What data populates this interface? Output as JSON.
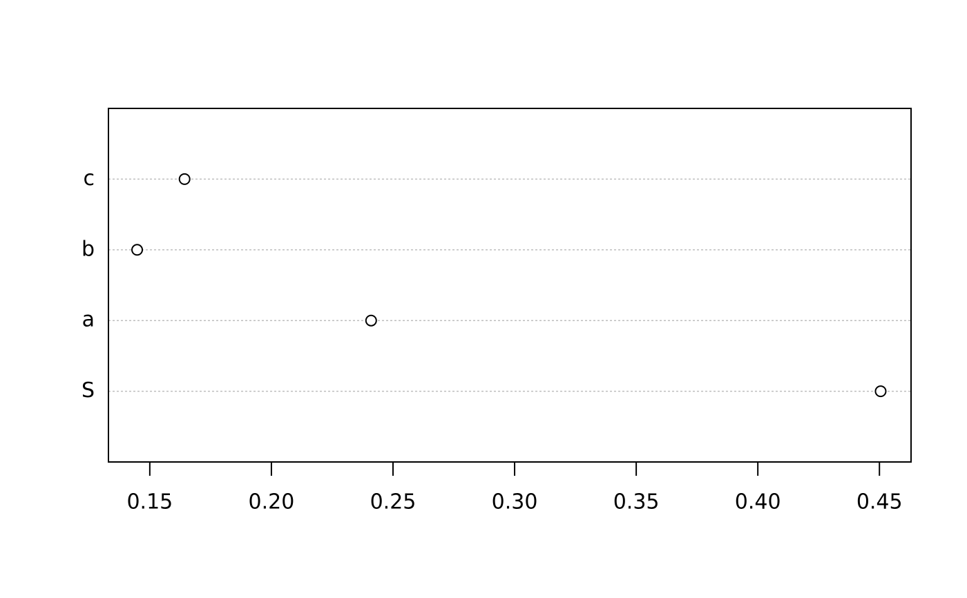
{
  "chart_data": {
    "type": "scatter",
    "subtype": "dotchart",
    "title": "",
    "xlabel": "",
    "ylabel": "",
    "categories": [
      "S",
      "a",
      "b",
      "c"
    ],
    "values": [
      0.4505,
      0.241,
      0.1448,
      0.1643
    ],
    "xlim": [
      0.133,
      0.463
    ],
    "x_ticks": [
      0.15,
      0.2,
      0.25,
      0.3,
      0.35,
      0.4,
      0.45
    ],
    "x_tick_labels": [
      "0.15",
      "0.20",
      "0.25",
      "0.30",
      "0.35",
      "0.40",
      "0.45"
    ],
    "grid": "dotted horizontal guide lines per category",
    "marker": "open circle",
    "colors": {
      "marker": "#000000",
      "guide": "#bebebe",
      "frame": "#000000"
    }
  }
}
